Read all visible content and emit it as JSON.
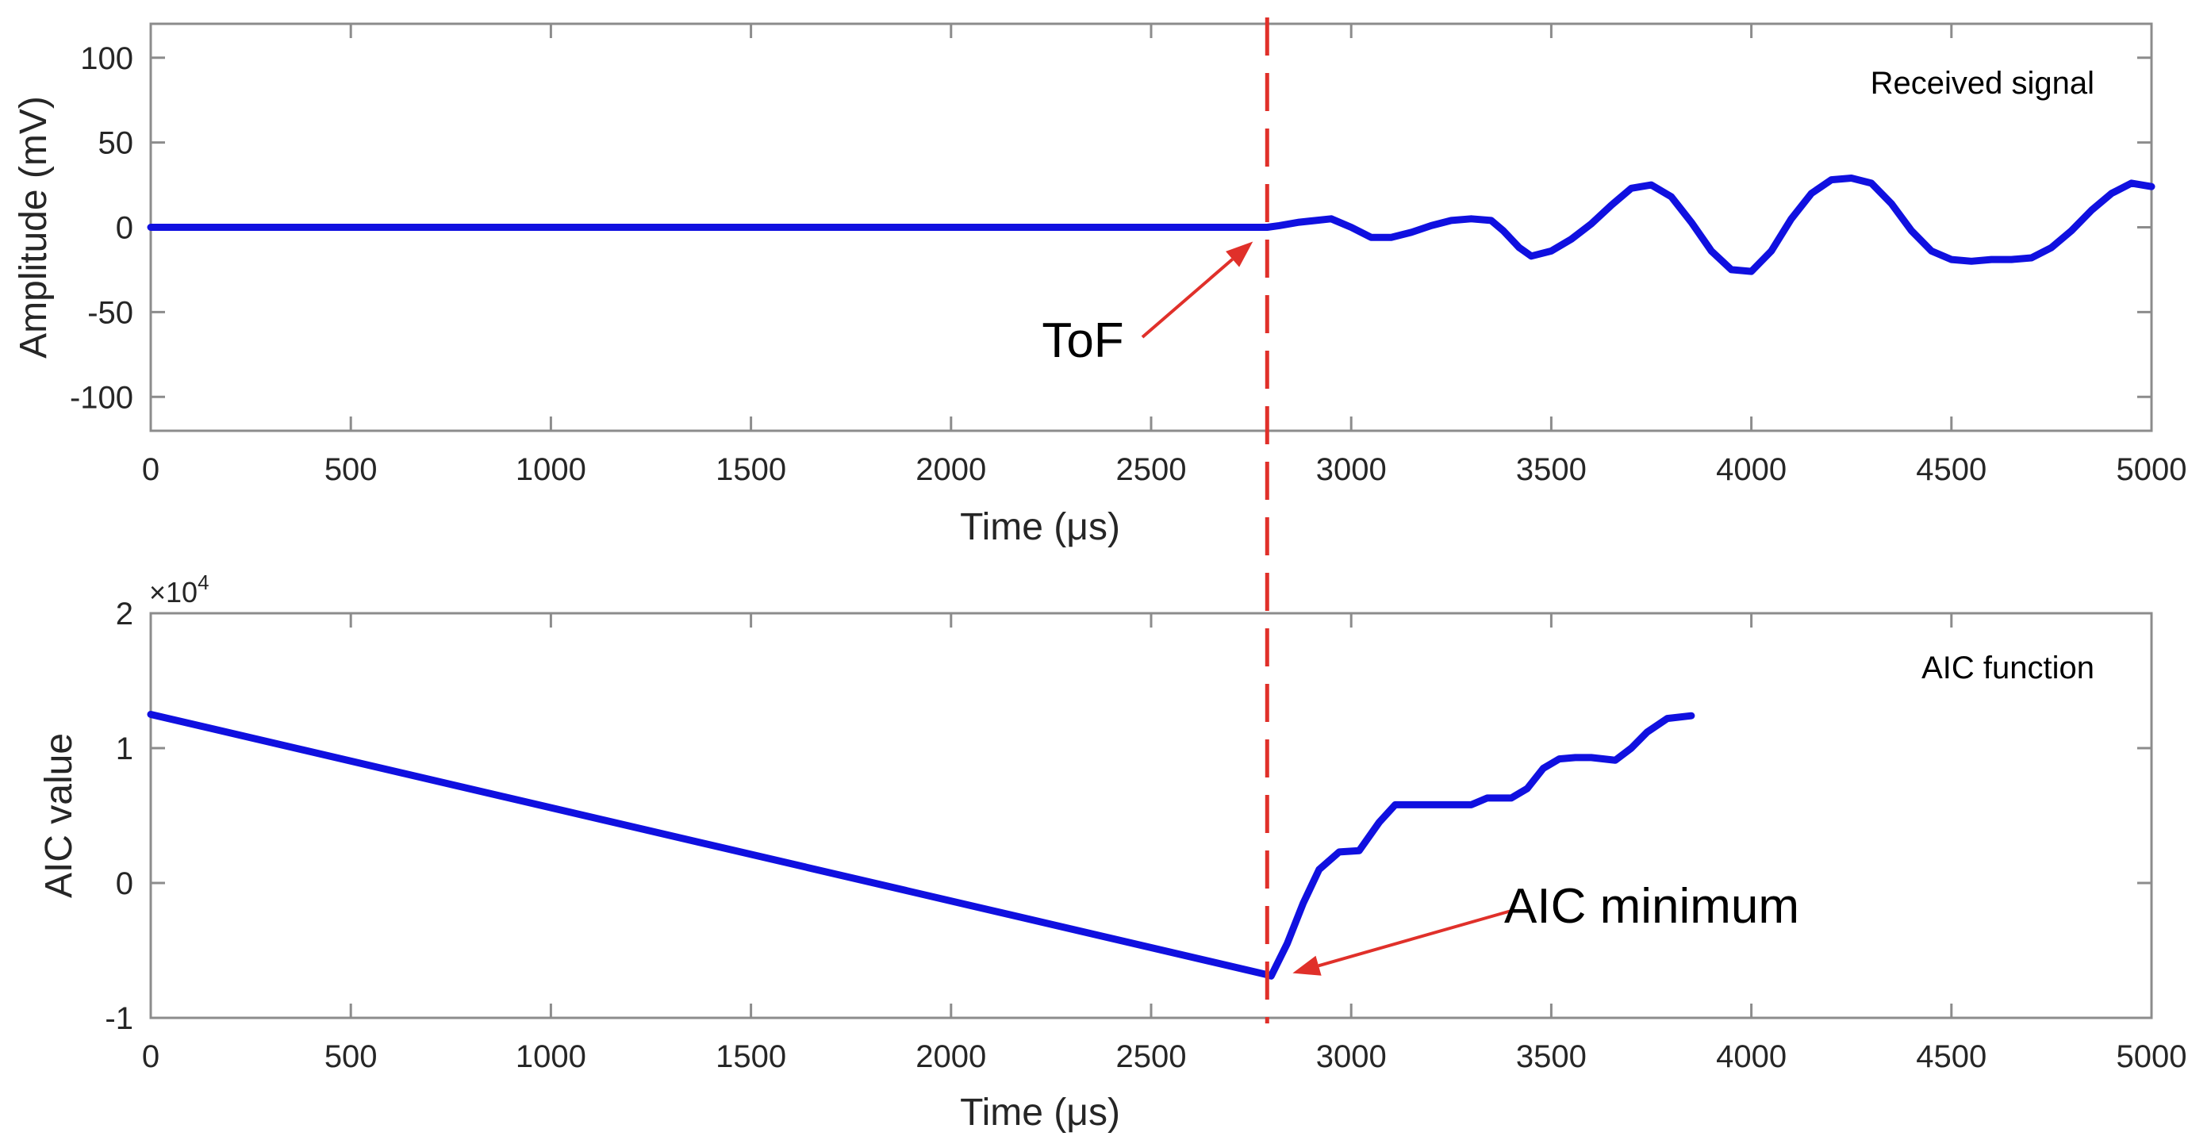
{
  "colors": {
    "signal": "#1010e0",
    "marker": "#e0302a",
    "axis": "#8c8c8c",
    "text": "#262626"
  },
  "chart_data": [
    {
      "type": "line",
      "title": "",
      "legend": "Received signal",
      "xlabel": "Time (μs)",
      "ylabel": "Amplitude (mV)",
      "xlim": [
        0,
        5000
      ],
      "ylim": [
        -120,
        120
      ],
      "xticks": [
        0,
        500,
        1000,
        1500,
        2000,
        2500,
        3000,
        3500,
        4000,
        4500,
        5000
      ],
      "yticks": [
        -100,
        -50,
        0,
        50,
        100
      ],
      "series": [
        {
          "name": "Received signal",
          "x": [
            0,
            2790,
            2820,
            2870,
            2950,
            3000,
            3050,
            3100,
            3150,
            3200,
            3250,
            3300,
            3350,
            3380,
            3420,
            3450,
            3500,
            3550,
            3600,
            3650,
            3700,
            3750,
            3800,
            3850,
            3900,
            3950,
            4000,
            4050,
            4100,
            4150,
            4200,
            4250,
            4300,
            4350,
            4400,
            4450,
            4500,
            4550,
            4600,
            4650,
            4700,
            4750,
            4800,
            4850,
            4900,
            4950,
            5000
          ],
          "y": [
            0,
            0,
            1,
            3,
            5,
            0,
            -6,
            -6,
            -3,
            1,
            4,
            5,
            4,
            -2,
            -12,
            -17,
            -14,
            -7,
            2,
            13,
            23,
            25,
            18,
            3,
            -14,
            -25,
            -26,
            -14,
            5,
            20,
            28,
            29,
            26,
            14,
            -2,
            -14,
            -19,
            -20,
            -19,
            -19,
            -18,
            -12,
            -2,
            10,
            20,
            26,
            24
          ]
        }
      ],
      "annotations": [
        {
          "text": "ToF",
          "x": 2790,
          "y": 0
        }
      ],
      "marker_line": {
        "x": 2790,
        "style": "dashed"
      }
    },
    {
      "type": "line",
      "title": "",
      "legend": "AIC function",
      "xlabel": "Time (μs)",
      "ylabel": "AIC value",
      "exponent_label": "×10",
      "exponent_power": "4",
      "xlim": [
        0,
        5000
      ],
      "ylim": [
        -10000,
        20000
      ],
      "xticks": [
        0,
        500,
        1000,
        1500,
        2000,
        2500,
        3000,
        3500,
        4000,
        4500,
        5000
      ],
      "yticks": [
        -10000,
        0,
        10000,
        20000
      ],
      "ytick_labels": [
        "-1",
        "0",
        "1",
        "2"
      ],
      "series": [
        {
          "name": "AIC function",
          "x": [
            0,
            2790,
            2800,
            2840,
            2880,
            2920,
            2970,
            3020,
            3070,
            3110,
            3200,
            3300,
            3340,
            3400,
            3440,
            3480,
            3520,
            3560,
            3600,
            3660,
            3700,
            3740,
            3790,
            3850
          ],
          "y": [
            12500,
            -6800,
            -6900,
            -4500,
            -1500,
            1000,
            2300,
            2400,
            4500,
            5800,
            5800,
            5800,
            6300,
            6300,
            7000,
            8500,
            9200,
            9300,
            9300,
            9100,
            10000,
            11200,
            12200,
            12400
          ]
        }
      ],
      "annotations": [
        {
          "text": "AIC minimum",
          "x": 2810,
          "y": -6800
        }
      ],
      "marker_line": {
        "x": 2790,
        "style": "dashed"
      }
    }
  ]
}
